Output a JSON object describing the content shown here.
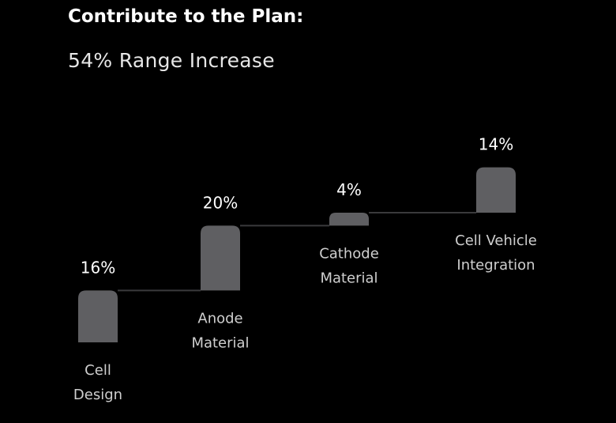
{
  "header": {
    "title": "Contribute to the Plan:",
    "subtitle": "54% Range Increase"
  },
  "colors": {
    "background": "#000000",
    "bar": "#5f5f62",
    "connector": "#3a3a3c",
    "text": "#ffffff",
    "category_text": "#cfcfcf"
  },
  "chart_data": {
    "type": "waterfall",
    "title": "Contribute to the Plan:",
    "subtitle": "54% Range Increase",
    "unit": "%",
    "categories": [
      [
        "Cell",
        "Design"
      ],
      [
        "Anode",
        "Material"
      ],
      [
        "Cathode",
        "Material"
      ],
      [
        "Cell Vehicle",
        "Integration"
      ]
    ],
    "values": [
      16,
      20,
      4,
      14
    ],
    "value_labels": [
      "16%",
      "20%",
      "4%",
      "14%"
    ],
    "total": 54,
    "grid": false,
    "legend": "none"
  }
}
